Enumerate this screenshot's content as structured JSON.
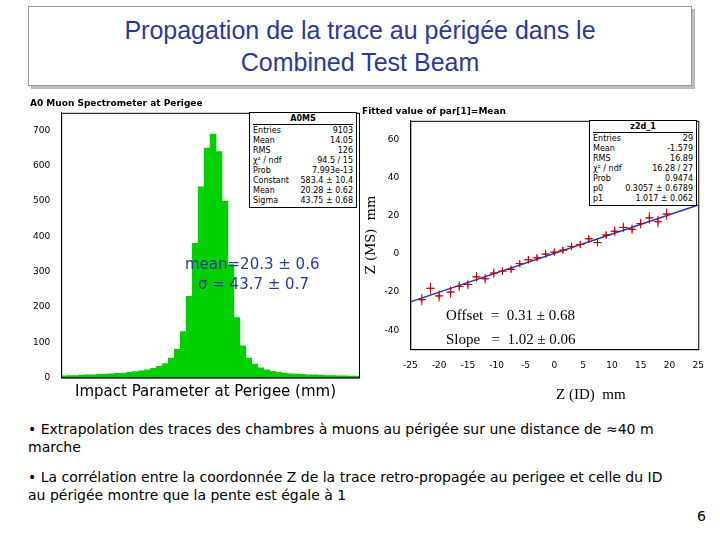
{
  "slide": {
    "title": [
      "Propagation de la trace au périgée dans le",
      "Combined Test Beam"
    ],
    "bullets": [
      "• Extrapolation des traces des  chambres à muons au périgée sur une distance de ≈40 m  marche",
      "• La corrélation entre la coordonnée Z de la trace retro-propagée au perigee et celle du ID au périgée montre que la pente est égale à 1"
    ],
    "page": "6"
  },
  "chart_data": [
    {
      "type": "histogram",
      "title": "A0 Muon Spectrometer at Perigee",
      "x_label": "Impact Parameter at Perigee (mm)",
      "bins": [
        -500,
        -480,
        -460,
        -440,
        -420,
        -400,
        -380,
        -360,
        -340,
        -320,
        -300,
        -280,
        -260,
        -240,
        -220,
        -200,
        -180,
        -160,
        -140,
        -120,
        -100,
        -80,
        -60,
        -40,
        -20,
        0,
        20,
        40,
        60,
        80,
        100,
        120,
        140,
        160,
        180,
        200,
        220,
        240,
        260,
        280,
        300,
        320,
        340,
        360,
        380,
        400,
        420,
        440,
        460,
        480,
        500
      ],
      "values": [
        5,
        6,
        6,
        7,
        8,
        8,
        9,
        10,
        11,
        12,
        13,
        15,
        17,
        19,
        22,
        26,
        32,
        40,
        55,
        80,
        130,
        230,
        380,
        540,
        650,
        690,
        640,
        500,
        320,
        170,
        90,
        55,
        38,
        28,
        22,
        18,
        15,
        13,
        11,
        10,
        9,
        8,
        8,
        7,
        6,
        6,
        5,
        5,
        4,
        4
      ],
      "color": "#00d000",
      "xlim": [
        -500,
        500
      ],
      "ylim": [
        0,
        750
      ],
      "yticks": [
        0,
        100,
        200,
        300,
        400,
        500,
        600,
        700
      ],
      "tick_labels": "y",
      "grid": false,
      "stats": {
        "title": "A0MS",
        "rows": [
          [
            "Entries",
            "9103"
          ],
          [
            "Mean",
            "14.05"
          ],
          [
            "RMS",
            "126"
          ],
          [
            "χ² / ndf",
            "94.5 / 15"
          ],
          [
            "Prob",
            "7.993e-13"
          ],
          [
            "Constant",
            "583.4 ± 10.4"
          ],
          [
            "Mean",
            "20.28 ± 0.62"
          ],
          [
            "Sigma",
            "43.75 ± 0.68"
          ]
        ]
      },
      "annotations": [
        "mean=20.3 ± 0.6",
        "σ = 43.7 ± 0.7"
      ]
    },
    {
      "type": "scatter",
      "title": "Fitted value of par[1]=Mean",
      "x_label": "Z (ID)  mm",
      "y_label": "Z (MS)  mm",
      "x": [
        -23,
        -21.5,
        -20,
        -18,
        -16.5,
        -15,
        -13.5,
        -12,
        -10.5,
        -9,
        -7.5,
        -6,
        -4.5,
        -3,
        -1.5,
        0,
        1.5,
        3,
        4.5,
        6,
        7.5,
        9,
        10.5,
        12,
        13.5,
        15,
        16.5,
        18,
        19.5
      ],
      "values": [
        -24,
        -18,
        -22,
        -20,
        -17,
        -16,
        -12,
        -13,
        -10,
        -9,
        -8,
        -5,
        -3,
        -2,
        0,
        1,
        2,
        4,
        5,
        8,
        6,
        10,
        12,
        14,
        13,
        16,
        19,
        17,
        21
      ],
      "x_errors": [
        0.75,
        0.75,
        0.75,
        0.75,
        0.75,
        0.75,
        0.75,
        0.75,
        0.75,
        0.75,
        0.75,
        0.75,
        0.75,
        0.75,
        0.75,
        0.75,
        0.75,
        0.75,
        0.75,
        0.75,
        0.75,
        0.75,
        0.75,
        0.75,
        0.75,
        0.75,
        0.75,
        0.75,
        0.75
      ],
      "y_errors": [
        3,
        3,
        3,
        3,
        2.5,
        2.5,
        2.5,
        2.5,
        2.5,
        2,
        2,
        2,
        2,
        2,
        2,
        2,
        2,
        2,
        2,
        2,
        2,
        2,
        2.5,
        2.5,
        2.5,
        2.5,
        3,
        3,
        3
      ],
      "color": "#cc0000",
      "marker": "cross",
      "fit": {
        "offset": 0.3057,
        "slope": 1.017,
        "color": "#2233cc"
      },
      "xlim": [
        -25,
        25
      ],
      "ylim": [
        -50,
        70
      ],
      "xticks": [
        -25,
        -20,
        -15,
        -10,
        -5,
        0,
        5,
        10,
        15,
        20,
        25
      ],
      "yticks": [
        -40,
        -20,
        0,
        20,
        40,
        60
      ],
      "grid": false,
      "stats": {
        "title": "z2d_1",
        "rows": [
          [
            "Entries",
            "29"
          ],
          [
            "Mean",
            "-1.579"
          ],
          [
            "RMS",
            "16.89"
          ],
          [
            "χ² / ndf",
            "16.28 / 27"
          ],
          [
            "Prob",
            "0.9474"
          ],
          [
            "p0",
            "0.3057 ± 0.6789"
          ],
          [
            "p1",
            "1.017 ± 0.062"
          ]
        ]
      },
      "annotations": [
        "Offset  =  0.31 ± 0.68",
        "Slope   =  1.02 ± 0.06"
      ]
    }
  ]
}
